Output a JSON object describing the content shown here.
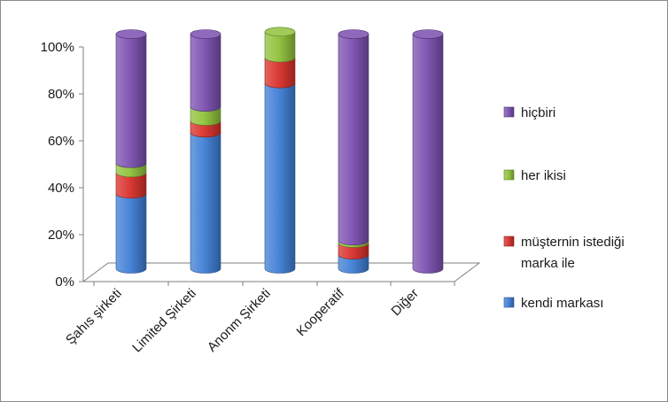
{
  "chart_data": {
    "type": "bar",
    "stacked": true,
    "percent_stacked": true,
    "three_d": true,
    "categories": [
      "Şahıs şirketi",
      "Limited Şirketi",
      "Anonm Şirketi",
      "Kooperatif",
      "Diğer"
    ],
    "series": [
      {
        "name": "kendi markası",
        "color": "#3f7fd6",
        "values": [
          32,
          58,
          79,
          6,
          0
        ]
      },
      {
        "name": "müşternin istediği marka ile",
        "color": "#d9302a",
        "values": [
          9,
          5,
          11,
          5,
          0
        ]
      },
      {
        "name": "her ikisi",
        "color": "#8fc23a",
        "values": [
          4,
          6,
          11,
          1,
          0
        ]
      },
      {
        "name": "hiçbiri",
        "color": "#7b50b0",
        "values": [
          55,
          31,
          0,
          88,
          100
        ]
      }
    ],
    "y_ticks": [
      "0%",
      "20%",
      "40%",
      "60%",
      "80%",
      "100%"
    ],
    "ylim": [
      0,
      100
    ],
    "legend_position": "right",
    "legend_order": [
      "hiçbiri",
      "her ikisi",
      "müşternin istediği marka ile",
      "kendi markası"
    ],
    "legend_lines": {
      "hiçbiri": [
        "hiçbiri"
      ],
      "her ikisi": [
        "her ikisi"
      ],
      "müşternin istediği marka ile": [
        "müşternin istediği",
        "marka ile"
      ],
      "kendi markası": [
        "kendi markası"
      ]
    },
    "grid": false
  }
}
